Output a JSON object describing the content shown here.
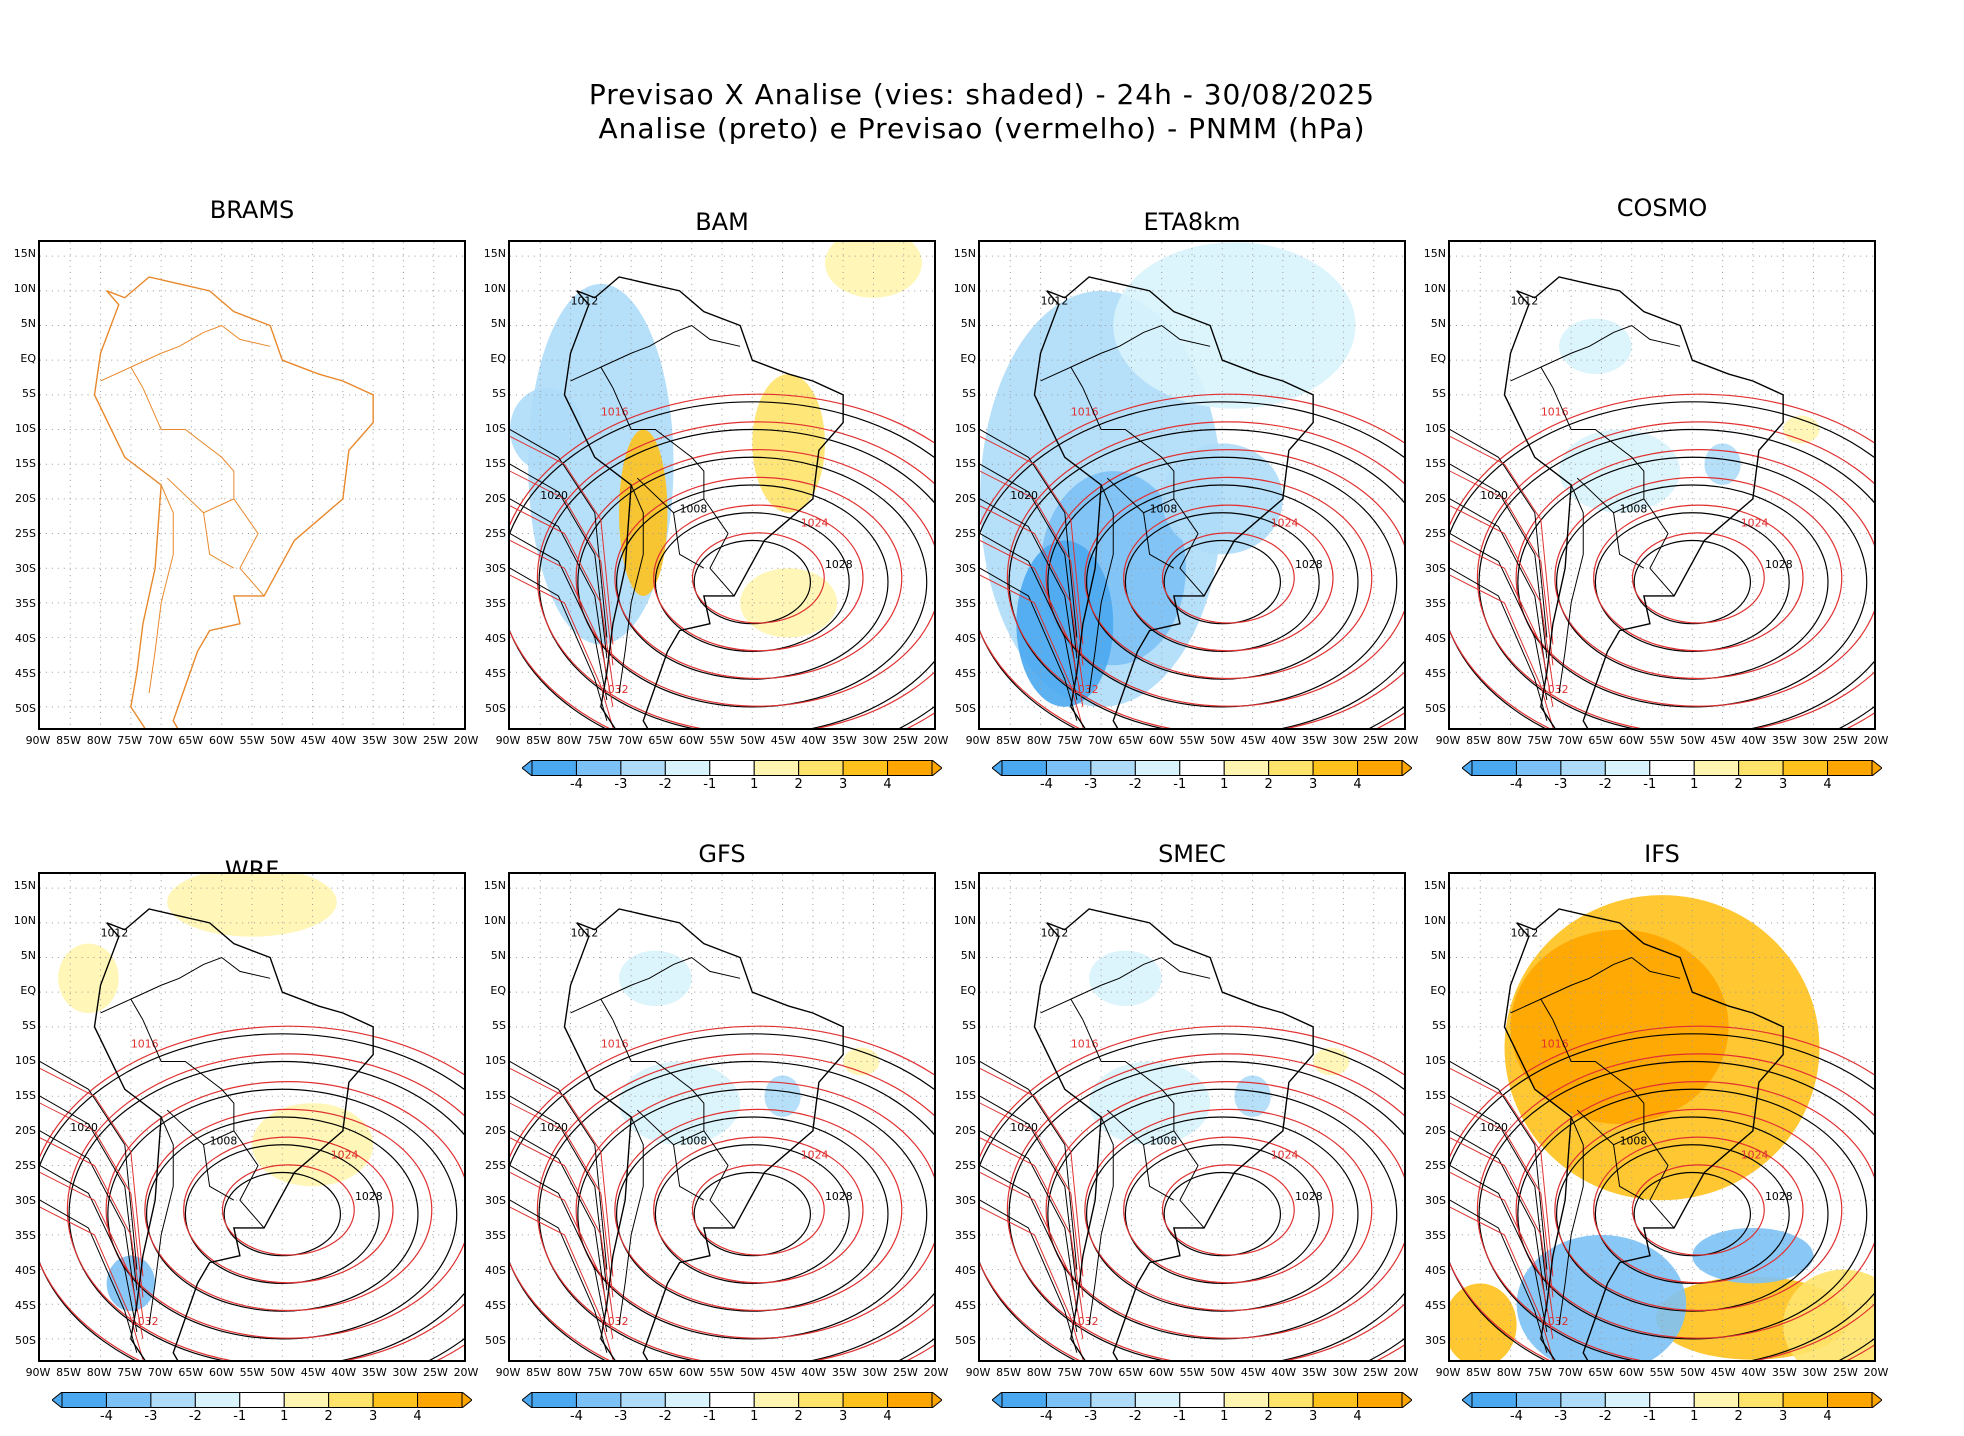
{
  "header": {
    "line1": "Previsao X Analise (vies: shaded) - 24h - 30/08/2025",
    "line2": "Analise (preto) e Previsao (vermelho) - PNMM (hPa)"
  },
  "chart_data": {
    "type": "heatmap",
    "title": "Previsao X Analise (vies: shaded) - 24h - 30/08/2025",
    "subtitle": "Analise (preto) e Previsao (vermelho) - PNMM (hPa)",
    "x_tick_labels": [
      "90W",
      "85W",
      "80W",
      "75W",
      "70W",
      "65W",
      "60W",
      "55W",
      "50W",
      "45W",
      "40W",
      "35W",
      "30W",
      "25W",
      "20W"
    ],
    "y_tick_labels": [
      "15N",
      "10N",
      "5N",
      "EQ",
      "5S",
      "10S",
      "15S",
      "20S",
      "25S",
      "30S",
      "35S",
      "40S",
      "45S",
      "50S"
    ],
    "xlim": [
      -90,
      -20
    ],
    "ylim": [
      -53,
      17
    ],
    "colorbar_labels": [
      "-4",
      "-3",
      "-2",
      "-1",
      "1",
      "2",
      "3",
      "4"
    ],
    "colorbar_colors": [
      "#4aa8f0",
      "#7cc1f5",
      "#aedcf8",
      "#d8f3fb",
      "#ffffff",
      "#fff5b0",
      "#ffe36a",
      "#ffc21c",
      "#ffa500"
    ],
    "analysis_color": "#000000",
    "forecast_color": "#e03030",
    "panels": [
      {
        "model": "BRAMS",
        "bias": "none",
        "colorbar": false,
        "labels": []
      },
      {
        "model": "BAM",
        "bias": "mixed",
        "colorbar": true,
        "labels": [
          "1012",
          "1016",
          "1020",
          "1024",
          "1028",
          "1032",
          "1008"
        ]
      },
      {
        "model": "ETA8km",
        "bias": "negative",
        "colorbar": true,
        "labels": [
          "1012",
          "1016",
          "1020",
          "1024",
          "1028",
          "1032",
          "1008"
        ]
      },
      {
        "model": "COSMO",
        "bias": "weak",
        "colorbar": true,
        "labels": [
          "1012",
          "1016",
          "1020",
          "1024",
          "1028",
          "1032",
          "1008"
        ]
      },
      {
        "model": "WRF",
        "bias": "weak-positive",
        "colorbar": true,
        "labels": [
          "1012",
          "1016",
          "1020",
          "1024",
          "1028",
          "1032",
          "1008"
        ]
      },
      {
        "model": "GFS",
        "bias": "weak",
        "colorbar": true,
        "labels": [
          "1012",
          "1016",
          "1020",
          "1024",
          "1028",
          "1032",
          "1008"
        ]
      },
      {
        "model": "SMEC",
        "bias": "weak",
        "colorbar": true,
        "labels": [
          "1012",
          "1016",
          "1020",
          "1024",
          "1028",
          "1032",
          "1008"
        ]
      },
      {
        "model": "IFS",
        "bias": "positive",
        "colorbar": true,
        "labels": [
          "1012",
          "1016",
          "1020",
          "1024",
          "1028",
          "1032",
          "1008"
        ],
        "y_tick_override": {
          "13": "30S"
        }
      }
    ]
  }
}
